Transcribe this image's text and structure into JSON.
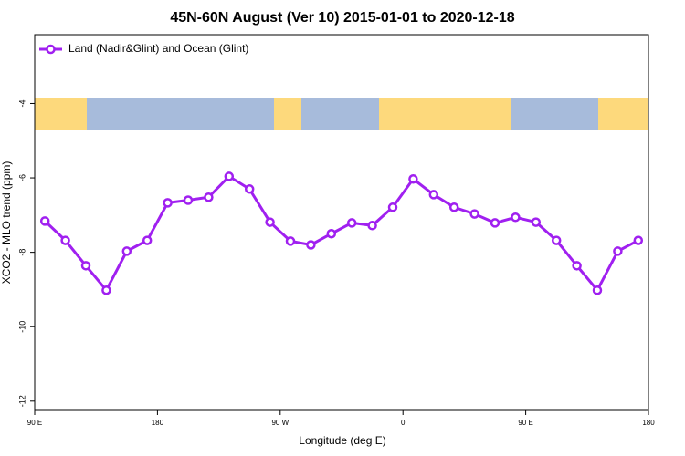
{
  "chart_data": {
    "type": "line",
    "title": "45N-60N August (Ver 10)   2015-01-01 to 2020-12-18",
    "x_label": "Longitude (deg E)",
    "y_label": "XCO2 - MLO trend (ppm)",
    "x": [
      97.5,
      112.5,
      127.5,
      142.5,
      157.5,
      172.5,
      187.5,
      202.5,
      217.5,
      232.5,
      247.5,
      262.5,
      277.5,
      292.5,
      307.5,
      322.5,
      337.5,
      352.5,
      367.5,
      382.5,
      397.5,
      412.5,
      427.5,
      442.5,
      457.5,
      472.5,
      487.5,
      502.5,
      517.5,
      532.5
    ],
    "series": [
      {
        "name": "Land (Nadir&Glint) and Ocean (Glint)",
        "color": "#a020f0",
        "values": [
          -7.16,
          -7.68,
          -8.36,
          -9.02,
          -7.97,
          -7.68,
          -6.67,
          -6.6,
          -6.52,
          -5.96,
          -6.3,
          -7.19,
          -7.7,
          -7.8,
          -7.5,
          -7.21,
          -7.28,
          -6.79,
          -6.03,
          -6.45,
          -6.79,
          -6.97,
          -7.21,
          -7.06,
          -7.19,
          -7.68,
          -8.36,
          -9.02,
          -7.97,
          -7.68
        ]
      }
    ],
    "xlim": [
      90,
      540
    ],
    "xticks": [
      {
        "value": 90,
        "label": "90 E"
      },
      {
        "value": 180,
        "label": "180"
      },
      {
        "value": 270,
        "label": "90 W"
      },
      {
        "value": 360,
        "label": "0"
      },
      {
        "value": 450,
        "label": "90 E"
      },
      {
        "value": 540,
        "label": "180"
      }
    ],
    "ylim": [
      -12.25,
      -2.15
    ],
    "yticks": [
      -12,
      -10,
      -8,
      -6,
      -4
    ],
    "legend": "top-left"
  }
}
